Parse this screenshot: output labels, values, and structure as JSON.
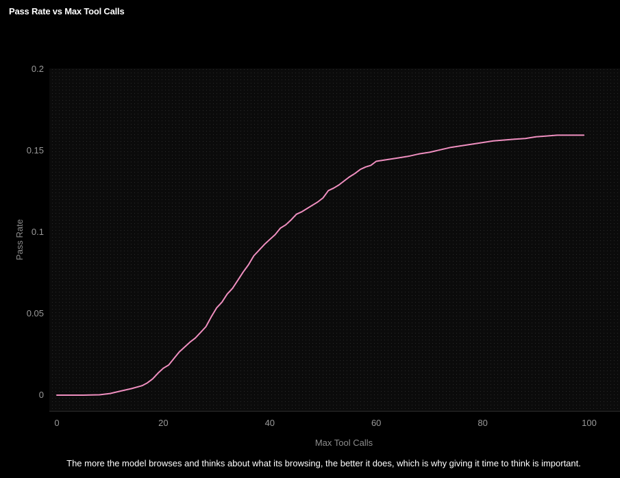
{
  "chart_data": {
    "type": "line",
    "title": "Pass Rate vs Max Tool Calls",
    "xlabel": "Max Tool Calls",
    "ylabel": "Pass Rate",
    "xlim": [
      0,
      100
    ],
    "ylim": [
      0,
      0.2
    ],
    "xticks": [
      "0",
      "20",
      "40",
      "60",
      "80",
      "100"
    ],
    "yticks": [
      "0",
      "0.05",
      "0.1",
      "0.15",
      "0.2"
    ],
    "grid": false,
    "line_color": "#f08fc0",
    "series": [
      {
        "x": [
          0,
          5,
          8,
          10,
          12,
          14,
          16,
          17,
          18,
          19,
          20,
          21,
          22,
          23,
          24,
          25,
          26,
          27,
          28,
          29,
          30,
          31,
          32,
          33,
          34,
          35,
          36,
          37,
          38,
          39,
          40,
          41,
          42,
          43,
          44,
          45,
          46,
          47,
          48,
          49,
          50,
          51,
          52,
          53,
          54,
          55,
          56,
          57,
          58,
          59,
          60,
          62,
          64,
          66,
          68,
          70,
          72,
          74,
          76,
          78,
          80,
          82,
          84,
          86,
          88,
          90,
          92,
          94,
          96,
          98,
          99
        ],
        "y": [
          0,
          0,
          0.0002,
          0.001,
          0.0025,
          0.004,
          0.0058,
          0.0075,
          0.01,
          0.0135,
          0.0165,
          0.0185,
          0.0225,
          0.0265,
          0.0295,
          0.0325,
          0.035,
          0.0385,
          0.042,
          0.048,
          0.0535,
          0.057,
          0.062,
          0.0655,
          0.0705,
          0.0755,
          0.08,
          0.0855,
          0.089,
          0.0925,
          0.0955,
          0.0985,
          0.1025,
          0.1045,
          0.1075,
          0.111,
          0.1125,
          0.1145,
          0.1165,
          0.1185,
          0.121,
          0.1255,
          0.127,
          0.129,
          0.1315,
          0.134,
          0.136,
          0.1385,
          0.14,
          0.141,
          0.1435,
          0.1445,
          0.1455,
          0.1465,
          0.148,
          0.149,
          0.1505,
          0.152,
          0.153,
          0.154,
          0.155,
          0.156,
          0.1565,
          0.157,
          0.1575,
          0.1585,
          0.159,
          0.1595,
          0.1595,
          0.1595,
          0.1595
        ]
      }
    ]
  },
  "caption": "The more the model browses and thinks about what its browsing, the better it does, which is why giving it time to think is important."
}
